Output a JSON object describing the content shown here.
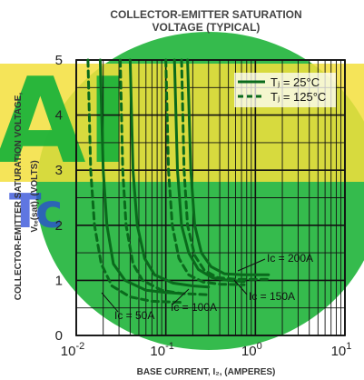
{
  "watermark": {
    "text_top": "AI",
    "text_bottom": "Tc",
    "colors": {
      "green": "#1fb43a",
      "yellow": "#f3df3c",
      "blue": "#2a49d8"
    }
  },
  "colors": {
    "curve": "#0a6a1c",
    "grid": "#111111"
  },
  "chart_data": {
    "type": "line",
    "title": "COLLECTOR-EMITTER SATURATION",
    "subtitle": "VOLTAGE (TYPICAL)",
    "xlabel": "BASE CURRENT, I₂, (AMPERES)",
    "ylabel_line1": "COLLECTOR-EMITTER SATURATION VOLTAGE,",
    "ylabel_line2": "Vₜₑ(sat), (VOLTS)",
    "x_scale": "log",
    "xlim": [
      0.01,
      10
    ],
    "ylim": [
      0,
      5
    ],
    "grid": true,
    "x_tick_labels": [
      {
        "value": 0.01,
        "label": "10-2"
      },
      {
        "value": 0.1,
        "label": "10-1"
      },
      {
        "value": 1,
        "label": "10 0"
      },
      {
        "value": 10,
        "label": "10 1"
      }
    ],
    "y_ticks": [
      0,
      1,
      2,
      3,
      4,
      5
    ],
    "legend": {
      "placement": "top-right",
      "entries": [
        {
          "style": "solid",
          "label": "Tⱼ = 25°C"
        },
        {
          "style": "dashed",
          "label": "Tⱼ = 125°C"
        }
      ]
    },
    "annotations": [
      {
        "text": "Iᴄ = 200A"
      },
      {
        "text": "Iᴄ = 150A"
      },
      {
        "text": "Iᴄ = 100A"
      },
      {
        "text": "Iᴄ = 50A"
      }
    ],
    "series": [
      {
        "style": "solid",
        "ic": "50A",
        "x": [
          0.0185,
          0.02,
          0.022,
          0.026,
          0.035,
          0.06,
          0.1,
          0.15
        ],
        "y": [
          5.0,
          3.0,
          2.0,
          1.3,
          1.0,
          0.82,
          0.78,
          0.76
        ]
      },
      {
        "style": "dashed",
        "ic": "50A",
        "x": [
          0.0135,
          0.0145,
          0.016,
          0.019,
          0.025,
          0.04,
          0.07,
          0.15
        ],
        "y": [
          5.0,
          3.0,
          2.0,
          1.3,
          0.9,
          0.7,
          0.62,
          0.6
        ]
      },
      {
        "style": "solid",
        "ic": "100A",
        "x": [
          0.04,
          0.043,
          0.048,
          0.058,
          0.075,
          0.12,
          0.2,
          0.3
        ],
        "y": [
          5.0,
          3.0,
          2.0,
          1.4,
          1.1,
          0.95,
          0.9,
          0.88
        ]
      },
      {
        "style": "dashed",
        "ic": "100A",
        "x": [
          0.031,
          0.033,
          0.036,
          0.043,
          0.055,
          0.09,
          0.15,
          0.3
        ],
        "y": [
          5.0,
          3.0,
          2.0,
          1.3,
          1.0,
          0.82,
          0.76,
          0.74
        ]
      },
      {
        "style": "solid",
        "ic": "150A",
        "x": [
          0.125,
          0.135,
          0.15,
          0.18,
          0.23,
          0.33,
          0.5,
          0.75
        ],
        "y": [
          5.0,
          3.0,
          2.0,
          1.5,
          1.2,
          1.05,
          1.0,
          0.98
        ]
      },
      {
        "style": "dashed",
        "ic": "150A",
        "x": [
          0.1,
          0.107,
          0.118,
          0.14,
          0.18,
          0.26,
          0.4,
          0.75
        ],
        "y": [
          5.0,
          3.0,
          2.0,
          1.4,
          1.1,
          0.97,
          0.93,
          0.92
        ]
      },
      {
        "style": "solid",
        "ic": "200A",
        "x": [
          0.175,
          0.19,
          0.21,
          0.25,
          0.32,
          0.45,
          0.7,
          1.4
        ],
        "y": [
          5.0,
          3.0,
          2.0,
          1.5,
          1.25,
          1.12,
          1.1,
          1.1
        ]
      },
      {
        "style": "dashed",
        "ic": "200A",
        "x": [
          0.15,
          0.16,
          0.175,
          0.21,
          0.27,
          0.38,
          0.6,
          1.4
        ],
        "y": [
          5.0,
          3.0,
          2.0,
          1.45,
          1.18,
          1.05,
          1.02,
          1.02
        ]
      }
    ]
  }
}
